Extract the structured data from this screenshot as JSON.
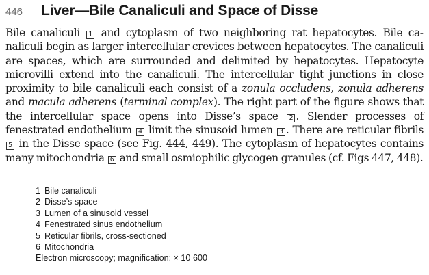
{
  "header": {
    "page_number": "446",
    "title": "Liver—Bile Canaliculi and Space of Disse"
  },
  "body": {
    "s1": "Bile canaliculi ",
    "ref1": "1",
    "s2": " and cytoplasm of two neighboring rat hepatocytes. Bile ca­naliculi begin as larger intercellular crevices between hepatocytes. The cana­liculi are spaces, which are surrounded and delimited by hepatocytes. Hepa­tocyte microvilli extend into the canaliculi. The intercellular tight junctions in close proximity to bile canaliculi each consist of a ",
    "i1": "zonula occludens",
    "s3": ", ",
    "i2": "zonula adherens",
    "s4": " and ",
    "i3": "macula adherens",
    "s5": " (",
    "i4": "terminal complex",
    "s6": "). The right part of the figure shows that the intercellular space opens into Disse’s space ",
    "ref2": "2",
    "s7": ". Slender pro­cesses of fenestrated endothelium ",
    "ref4": "4",
    "s8": " limit the sinusoid lumen ",
    "ref3": "3",
    "s9": ". There are reticular fibrils ",
    "ref5": "5",
    "s10": " in the Disse space (see Fig. 444, 449). The cytoplasm of he­patocytes contains many mitochondria ",
    "ref6": "6",
    "s11": " and small osmiophilic glycogen granules (cf. Figs 447, 448)."
  },
  "legend": {
    "items": [
      {
        "num": "1",
        "label": "Bile canaliculi"
      },
      {
        "num": "2",
        "label": "Disse’s space"
      },
      {
        "num": "3",
        "label": "Lumen of a sinusoid vessel"
      },
      {
        "num": "4",
        "label": "Fenestrated sinus endothelium"
      },
      {
        "num": "5",
        "label": "Reticular fibrils, cross-sectioned"
      },
      {
        "num": "6",
        "label": "Mitochondria"
      }
    ],
    "footer": "Electron microscopy; magnification: × 10 600"
  }
}
